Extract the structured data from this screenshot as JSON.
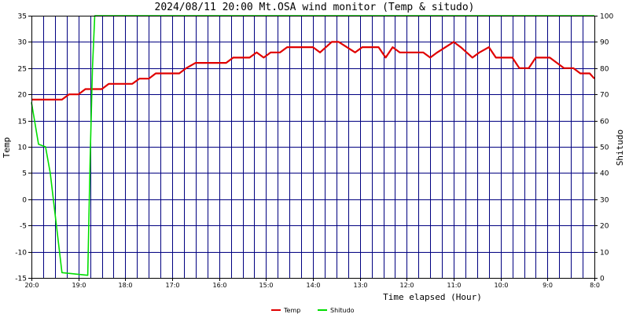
{
  "chart_data": {
    "type": "line",
    "title": "2024/08/11 20:00      Mt.OSA wind monitor (Temp & situdo)",
    "xlabel": "Time elapsed (Hour)",
    "ylabel_left": "Temp",
    "ylabel_right": "Shitudo",
    "ylim_left": [
      -15,
      35
    ],
    "ylim_right": [
      0,
      100
    ],
    "yticks_left": [
      "-15",
      "-10",
      "-5",
      "0",
      "5",
      "10",
      "15",
      "20",
      "25",
      "30",
      "35"
    ],
    "yticks_right": [
      "0",
      "10",
      "20",
      "30",
      "40",
      "50",
      "60",
      "70",
      "80",
      "90",
      "100"
    ],
    "xlim": [
      0,
      24
    ],
    "xticks": [
      {
        "x": 0,
        "label": "20:0"
      },
      {
        "x": 2,
        "label": "19:0"
      },
      {
        "x": 4,
        "label": "18:0"
      },
      {
        "x": 6,
        "label": "17:0"
      },
      {
        "x": 8,
        "label": "16:0"
      },
      {
        "x": 10,
        "label": "15:0"
      },
      {
        "x": 12,
        "label": "14:0"
      },
      {
        "x": 14,
        "label": "13:0"
      },
      {
        "x": 16,
        "label": "12:0"
      },
      {
        "x": 18,
        "label": "11:0"
      },
      {
        "x": 20,
        "label": "10:0"
      },
      {
        "x": 22,
        "label": "9:0"
      },
      {
        "x": 24,
        "label": "8:0"
      }
    ],
    "grid": true,
    "series": [
      {
        "name": "Temp",
        "color": "#e00000",
        "axis": "left",
        "points": [
          [
            0,
            19
          ],
          [
            1.3,
            19
          ],
          [
            1.6,
            20
          ],
          [
            2,
            20
          ],
          [
            2.3,
            21
          ],
          [
            3,
            21
          ],
          [
            3.3,
            22
          ],
          [
            4.3,
            22
          ],
          [
            4.6,
            23
          ],
          [
            5,
            23
          ],
          [
            5.3,
            24
          ],
          [
            6.3,
            24
          ],
          [
            6.6,
            25
          ],
          [
            7,
            26
          ],
          [
            8.3,
            26
          ],
          [
            8.6,
            27
          ],
          [
            9.3,
            27
          ],
          [
            9.6,
            28
          ],
          [
            9.9,
            27
          ],
          [
            10.2,
            28
          ],
          [
            10.6,
            28
          ],
          [
            10.9,
            29
          ],
          [
            12,
            29
          ],
          [
            12.3,
            28
          ],
          [
            12.8,
            30
          ],
          [
            13.1,
            30
          ],
          [
            13.8,
            28
          ],
          [
            14.1,
            29
          ],
          [
            14.8,
            29
          ],
          [
            15.1,
            27
          ],
          [
            15.4,
            29
          ],
          [
            15.7,
            28
          ],
          [
            16.7,
            28
          ],
          [
            17,
            27
          ],
          [
            17.3,
            28
          ],
          [
            18,
            30
          ],
          [
            18.3,
            29
          ],
          [
            18.8,
            27
          ],
          [
            19.1,
            28
          ],
          [
            19.5,
            29
          ],
          [
            19.8,
            27
          ],
          [
            20.5,
            27
          ],
          [
            20.8,
            25
          ],
          [
            21.2,
            25
          ],
          [
            21.5,
            27
          ],
          [
            22.1,
            27
          ],
          [
            22.7,
            25
          ],
          [
            23.1,
            25
          ],
          [
            23.4,
            24
          ],
          [
            23.8,
            24
          ],
          [
            24,
            23
          ]
        ]
      },
      {
        "name": "Shitudo",
        "color": "#00dd00",
        "axis": "right",
        "points": [
          [
            0,
            67
          ],
          [
            0.3,
            51
          ],
          [
            0.6,
            50
          ],
          [
            0.8,
            40
          ],
          [
            1.0,
            25
          ],
          [
            1.3,
            2
          ],
          [
            2.4,
            1
          ],
          [
            2.5,
            45
          ],
          [
            2.6,
            80
          ],
          [
            2.7,
            100
          ],
          [
            3,
            100
          ],
          [
            24,
            100
          ]
        ]
      }
    ],
    "legend": {
      "placement": "bottom-center"
    }
  }
}
